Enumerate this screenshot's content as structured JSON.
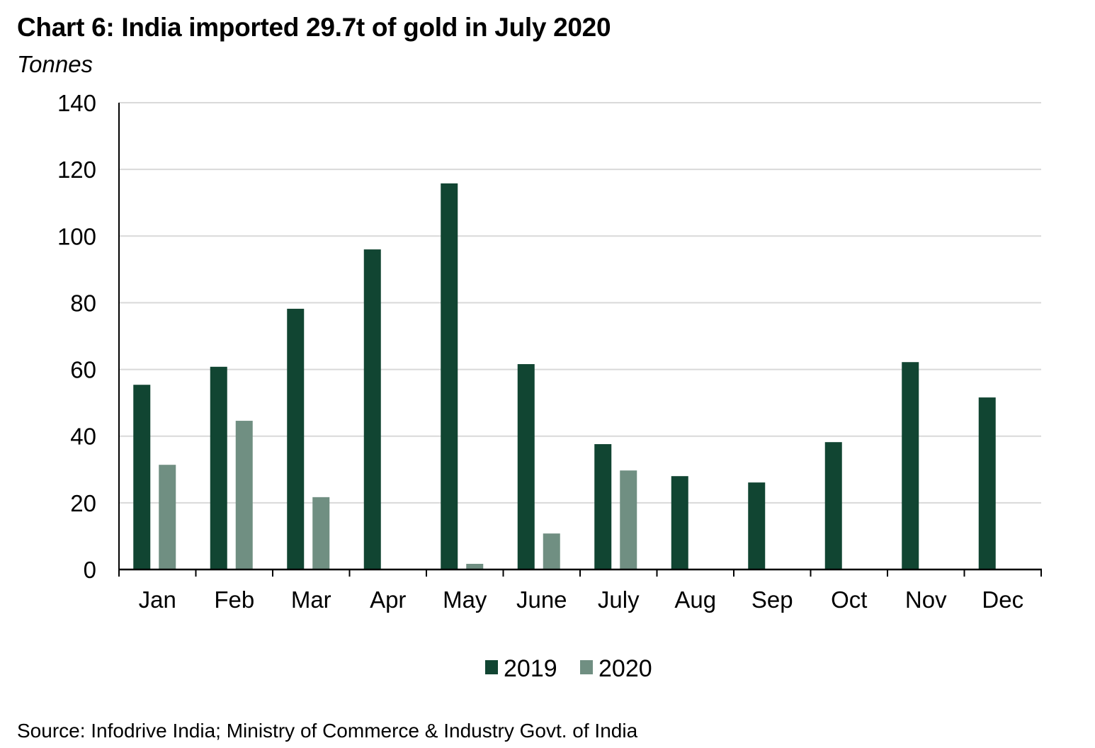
{
  "title": "Chart 6: India imported 29.7t of gold in July 2020",
  "unit_label": "Tonnes",
  "source": "Source: Infodrive India; Ministry of Commerce & Industry Govt. of India",
  "colors": {
    "2019": "#114532",
    "2020": "#708f82",
    "grid": "#d9d9d9",
    "axis": "#000000"
  },
  "chart_data": {
    "type": "bar",
    "title": "Chart 6: India imported 29.7t of gold in July 2020",
    "xlabel": "",
    "ylabel": "Tonnes",
    "ylim": [
      0,
      140
    ],
    "yticks": [
      0,
      20,
      40,
      60,
      80,
      100,
      120,
      140
    ],
    "grid": true,
    "legend_position": "bottom-center",
    "categories": [
      "Jan",
      "Feb",
      "Mar",
      "Apr",
      "May",
      "June",
      "July",
      "Aug",
      "Sep",
      "Oct",
      "Nov",
      "Dec"
    ],
    "series": [
      {
        "name": "2019",
        "values": [
          55.4,
          60.8,
          78.2,
          96.0,
          115.8,
          61.6,
          37.6,
          28.0,
          26.1,
          38.2,
          62.2,
          51.6
        ]
      },
      {
        "name": "2020",
        "values": [
          31.4,
          44.6,
          21.7,
          null,
          1.7,
          10.8,
          29.7,
          null,
          null,
          null,
          null,
          null
        ]
      }
    ]
  }
}
